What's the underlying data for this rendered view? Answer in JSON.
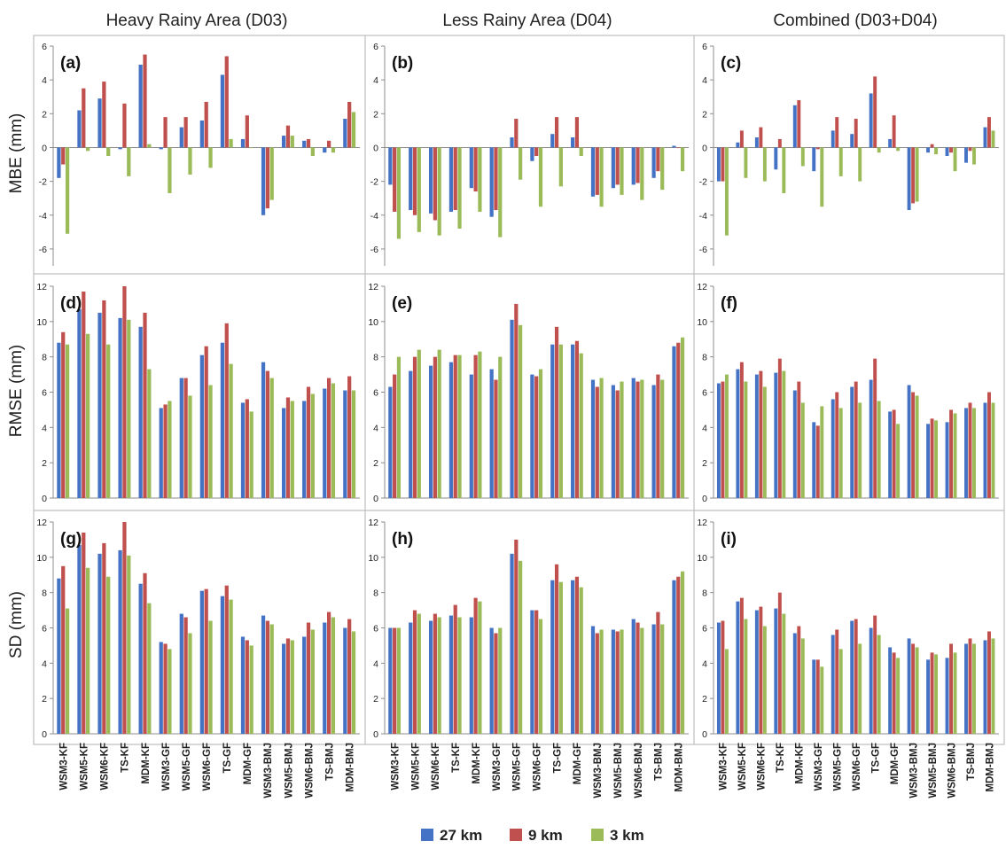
{
  "chart_data": {
    "type": "bar",
    "column_titles": [
      "Heavy Rainy Area (D03)",
      "Less Rainy Area (D04)",
      "Combined (D03+D04)"
    ],
    "row_ylabels": [
      "MBE (mm)",
      "RMSE (mm)",
      "SD (mm)"
    ],
    "row_ylims": [
      [
        -7,
        6
      ],
      [
        0,
        12
      ],
      [
        0,
        12
      ]
    ],
    "row_yticks": [
      [
        6,
        4,
        2,
        0,
        -2,
        -4,
        -6
      ],
      [
        0,
        2,
        4,
        6,
        8,
        10,
        12
      ],
      [
        0,
        2,
        4,
        6,
        8,
        10,
        12
      ]
    ],
    "categories": [
      "WSM3-KF",
      "WSM5-KF",
      "WSM6-KF",
      "TS-KF",
      "MDM-KF",
      "WSM3-GF",
      "WSM5-GF",
      "WSM6-GF",
      "TS-GF",
      "MDM-GF",
      "WSM3-BMJ",
      "WSM5-BMJ",
      "WSM6-BMJ",
      "TS-BMJ",
      "MDM-BMJ"
    ],
    "legend": [
      {
        "name": "27 km",
        "color": "#4472C4"
      },
      {
        "name": "9 km",
        "color": "#C0504D"
      },
      {
        "name": "3 km",
        "color": "#9BBB59"
      }
    ],
    "legend_position": "bottom",
    "panels": [
      {
        "label": "(a)",
        "row": 0,
        "col": 0,
        "series": [
          {
            "name": "27 km",
            "values": [
              -1.8,
              2.2,
              2.9,
              -0.1,
              4.9,
              -0.1,
              1.2,
              1.6,
              4.3,
              0.5,
              -4.0,
              0.7,
              0.4,
              -0.3,
              1.7
            ]
          },
          {
            "name": "9 km",
            "values": [
              -1.0,
              3.5,
              3.9,
              2.6,
              5.5,
              1.8,
              1.8,
              2.7,
              5.4,
              1.9,
              -3.6,
              1.3,
              0.5,
              0.4,
              2.7
            ]
          },
          {
            "name": "3 km",
            "values": [
              -5.1,
              -0.2,
              -0.5,
              -1.7,
              0.2,
              -2.7,
              -1.6,
              -1.2,
              0.5,
              0.0,
              -3.1,
              0.7,
              -0.5,
              -0.3,
              2.1
            ]
          }
        ]
      },
      {
        "label": "(b)",
        "row": 0,
        "col": 1,
        "series": [
          {
            "name": "27 km",
            "values": [
              -2.2,
              -3.7,
              -3.9,
              -3.8,
              -2.4,
              -4.1,
              0.6,
              -0.8,
              0.8,
              0.6,
              -2.9,
              -2.4,
              -2.2,
              -1.8,
              0.1
            ]
          },
          {
            "name": "9 km",
            "values": [
              -3.8,
              -4.0,
              -4.3,
              -3.7,
              -2.6,
              -3.7,
              1.7,
              -0.5,
              1.8,
              1.8,
              -2.8,
              -2.2,
              -2.1,
              -1.4,
              0.0
            ]
          },
          {
            "name": "3 km",
            "values": [
              -5.4,
              -5.0,
              -5.2,
              -4.8,
              -3.8,
              -5.3,
              -1.9,
              -3.5,
              -2.3,
              -0.5,
              -3.5,
              -2.8,
              -3.1,
              -2.5,
              -1.4
            ]
          }
        ]
      },
      {
        "label": "(c)",
        "row": 0,
        "col": 2,
        "series": [
          {
            "name": "27 km",
            "values": [
              -2.0,
              0.3,
              0.6,
              -1.3,
              2.5,
              -1.4,
              1.0,
              0.8,
              3.2,
              0.5,
              -3.7,
              -0.3,
              -0.5,
              -0.9,
              1.2
            ]
          },
          {
            "name": "9 km",
            "values": [
              -2.0,
              1.0,
              1.2,
              0.5,
              2.8,
              -0.1,
              1.8,
              1.7,
              4.2,
              1.9,
              -3.3,
              0.2,
              -0.3,
              -0.2,
              1.8
            ]
          },
          {
            "name": "3 km",
            "values": [
              -5.2,
              -1.8,
              -2.0,
              -2.7,
              -1.1,
              -3.5,
              -1.7,
              -2.0,
              -0.3,
              -0.2,
              -3.2,
              -0.4,
              -1.4,
              -1.0,
              1.0
            ]
          }
        ]
      },
      {
        "label": "(d)",
        "row": 1,
        "col": 0,
        "series": [
          {
            "name": "27 km",
            "values": [
              8.8,
              10.7,
              10.5,
              10.2,
              9.7,
              5.1,
              6.8,
              8.1,
              8.8,
              5.4,
              7.7,
              5.1,
              5.5,
              6.2,
              6.1
            ]
          },
          {
            "name": "9 km",
            "values": [
              9.4,
              11.7,
              11.2,
              12.0,
              10.5,
              5.3,
              6.8,
              8.6,
              9.9,
              5.6,
              7.2,
              5.7,
              6.3,
              6.8,
              6.9
            ]
          },
          {
            "name": "3 km",
            "values": [
              8.7,
              9.3,
              8.7,
              10.1,
              7.3,
              5.5,
              5.8,
              6.4,
              7.6,
              4.9,
              6.8,
              5.5,
              5.9,
              6.5,
              6.1
            ]
          }
        ]
      },
      {
        "label": "(e)",
        "row": 1,
        "col": 1,
        "series": [
          {
            "name": "27 km",
            "values": [
              6.3,
              7.2,
              7.5,
              7.7,
              7.0,
              7.3,
              10.1,
              7.0,
              8.7,
              8.7,
              6.7,
              6.4,
              6.8,
              6.4,
              8.6
            ]
          },
          {
            "name": "9 km",
            "values": [
              7.0,
              8.0,
              8.0,
              8.1,
              8.1,
              6.7,
              11.0,
              6.9,
              9.7,
              8.9,
              6.3,
              6.1,
              6.6,
              7.0,
              8.8
            ]
          },
          {
            "name": "3 km",
            "values": [
              8.0,
              8.4,
              8.4,
              8.1,
              8.3,
              8.0,
              9.8,
              7.3,
              8.7,
              8.2,
              6.8,
              6.6,
              6.7,
              6.7,
              9.1
            ]
          }
        ]
      },
      {
        "label": "(f)",
        "row": 1,
        "col": 2,
        "series": [
          {
            "name": "27 km",
            "values": [
              6.5,
              7.3,
              7.0,
              7.1,
              6.1,
              4.3,
              5.6,
              6.3,
              6.7,
              4.9,
              6.4,
              4.2,
              4.3,
              5.1,
              5.4
            ]
          },
          {
            "name": "9 km",
            "values": [
              6.6,
              7.7,
              7.2,
              7.9,
              6.6,
              4.1,
              6.0,
              6.6,
              7.9,
              5.0,
              6.0,
              4.5,
              5.0,
              5.4,
              6.0
            ]
          },
          {
            "name": "3 km",
            "values": [
              7.0,
              6.6,
              6.3,
              7.2,
              5.4,
              5.2,
              5.1,
              5.4,
              5.5,
              4.2,
              5.8,
              4.4,
              4.8,
              5.1,
              5.4
            ]
          }
        ]
      },
      {
        "label": "(g)",
        "row": 2,
        "col": 0,
        "series": [
          {
            "name": "27 km",
            "values": [
              8.8,
              10.7,
              10.2,
              10.4,
              8.5,
              5.2,
              6.8,
              8.1,
              7.8,
              5.5,
              6.7,
              5.1,
              5.5,
              6.3,
              6.0
            ]
          },
          {
            "name": "9 km",
            "values": [
              9.5,
              11.4,
              10.8,
              12.0,
              9.1,
              5.1,
              6.6,
              8.2,
              8.4,
              5.3,
              6.4,
              5.4,
              6.3,
              6.9,
              6.5
            ]
          },
          {
            "name": "3 km",
            "values": [
              7.1,
              9.4,
              8.9,
              10.1,
              7.4,
              4.8,
              5.7,
              6.4,
              7.6,
              5.0,
              6.2,
              5.3,
              5.9,
              6.6,
              5.8
            ]
          }
        ]
      },
      {
        "label": "(h)",
        "row": 2,
        "col": 1,
        "series": [
          {
            "name": "27 km",
            "values": [
              6.0,
              6.3,
              6.4,
              6.7,
              6.6,
              6.0,
              10.2,
              7.0,
              8.7,
              8.7,
              6.1,
              5.9,
              6.5,
              6.2,
              8.7
            ]
          },
          {
            "name": "9 km",
            "values": [
              6.0,
              7.0,
              6.8,
              7.3,
              7.7,
              5.7,
              11.0,
              7.0,
              9.6,
              8.9,
              5.7,
              5.8,
              6.3,
              6.9,
              8.9
            ]
          },
          {
            "name": "3 km",
            "values": [
              6.0,
              6.8,
              6.6,
              6.6,
              7.5,
              6.0,
              9.8,
              6.5,
              8.6,
              8.3,
              5.9,
              5.9,
              6.0,
              6.2,
              9.2
            ]
          }
        ]
      },
      {
        "label": "(i)",
        "row": 2,
        "col": 2,
        "series": [
          {
            "name": "27 km",
            "values": [
              6.3,
              7.5,
              7.0,
              7.1,
              5.7,
              4.2,
              5.6,
              6.4,
              6.0,
              4.9,
              5.4,
              4.2,
              4.3,
              5.1,
              5.3
            ]
          },
          {
            "name": "9 km",
            "values": [
              6.4,
              7.7,
              7.2,
              8.0,
              6.1,
              4.2,
              5.9,
              6.5,
              6.7,
              4.6,
              5.1,
              4.6,
              5.1,
              5.4,
              5.8
            ]
          },
          {
            "name": "3 km",
            "values": [
              4.8,
              6.5,
              6.1,
              6.8,
              5.4,
              3.8,
              4.8,
              5.1,
              5.6,
              4.3,
              4.9,
              4.5,
              4.6,
              5.1,
              5.4
            ]
          }
        ]
      }
    ]
  }
}
